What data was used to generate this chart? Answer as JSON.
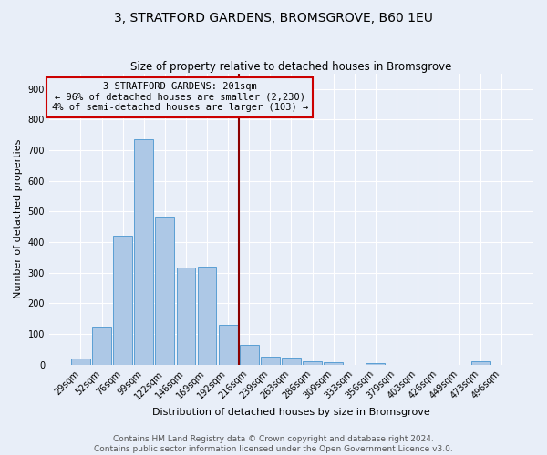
{
  "title": "3, STRATFORD GARDENS, BROMSGROVE, B60 1EU",
  "subtitle": "Size of property relative to detached houses in Bromsgrove",
  "xlabel": "Distribution of detached houses by size in Bromsgrove",
  "ylabel": "Number of detached properties",
  "bar_labels": [
    "29sqm",
    "52sqm",
    "76sqm",
    "99sqm",
    "122sqm",
    "146sqm",
    "169sqm",
    "192sqm",
    "216sqm",
    "239sqm",
    "263sqm",
    "286sqm",
    "309sqm",
    "333sqm",
    "356sqm",
    "379sqm",
    "403sqm",
    "426sqm",
    "449sqm",
    "473sqm",
    "496sqm"
  ],
  "bar_values": [
    20,
    125,
    420,
    735,
    480,
    318,
    320,
    130,
    65,
    27,
    22,
    10,
    8,
    0,
    6,
    0,
    0,
    0,
    0,
    10,
    0
  ],
  "bar_color": "#adc8e6",
  "bar_edge_color": "#5a9fd4",
  "property_label": "3 STRATFORD GARDENS: 201sqm",
  "annotation_line1": "← 96% of detached houses are smaller (2,230)",
  "annotation_line2": "4% of semi-detached houses are larger (103) →",
  "vline_color": "#8b0000",
  "annotation_box_edge_color": "#cc0000",
  "footer_line1": "Contains HM Land Registry data © Crown copyright and database right 2024.",
  "footer_line2": "Contains public sector information licensed under the Open Government Licence v3.0.",
  "ylim": [
    0,
    950
  ],
  "background_color": "#e8eef8",
  "title_fontsize": 10,
  "subtitle_fontsize": 8.5,
  "axis_label_fontsize": 8,
  "tick_fontsize": 7,
  "footer_fontsize": 6.5,
  "annotation_fontsize": 7.5
}
